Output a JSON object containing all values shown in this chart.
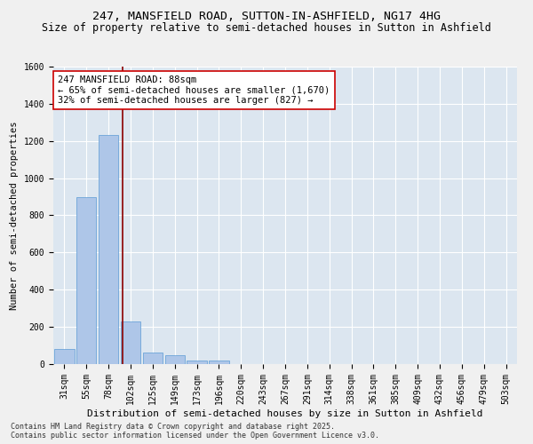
{
  "title1": "247, MANSFIELD ROAD, SUTTON-IN-ASHFIELD, NG17 4HG",
  "title2": "Size of property relative to semi-detached houses in Sutton in Ashfield",
  "xlabel": "Distribution of semi-detached houses by size in Sutton in Ashfield",
  "ylabel": "Number of semi-detached properties",
  "bins": [
    "31sqm",
    "55sqm",
    "78sqm",
    "102sqm",
    "125sqm",
    "149sqm",
    "173sqm",
    "196sqm",
    "220sqm",
    "243sqm",
    "267sqm",
    "291sqm",
    "314sqm",
    "338sqm",
    "361sqm",
    "385sqm",
    "409sqm",
    "432sqm",
    "456sqm",
    "479sqm",
    "503sqm"
  ],
  "values": [
    80,
    900,
    1230,
    230,
    60,
    50,
    20,
    18,
    0,
    0,
    0,
    0,
    0,
    0,
    0,
    0,
    0,
    0,
    0,
    0,
    0
  ],
  "bar_color": "#aec6e8",
  "bar_edge_color": "#5b9bd5",
  "vline_x": 2.62,
  "vline_color": "#8b0000",
  "annotation_text": "247 MANSFIELD ROAD: 88sqm\n← 65% of semi-detached houses are smaller (1,670)\n32% of semi-detached houses are larger (827) →",
  "annotation_box_color": "#ffffff",
  "annotation_box_edge": "#cc0000",
  "ylim": [
    0,
    1600
  ],
  "yticks": [
    0,
    200,
    400,
    600,
    800,
    1000,
    1200,
    1400,
    1600
  ],
  "bg_color": "#dce6f0",
  "grid_color": "#ffffff",
  "fig_bg_color": "#f0f0f0",
  "footer": "Contains HM Land Registry data © Crown copyright and database right 2025.\nContains public sector information licensed under the Open Government Licence v3.0.",
  "title1_fontsize": 9.5,
  "title2_fontsize": 8.5,
  "xlabel_fontsize": 8,
  "ylabel_fontsize": 7.5,
  "tick_fontsize": 7,
  "annot_fontsize": 7.5,
  "footer_fontsize": 6
}
